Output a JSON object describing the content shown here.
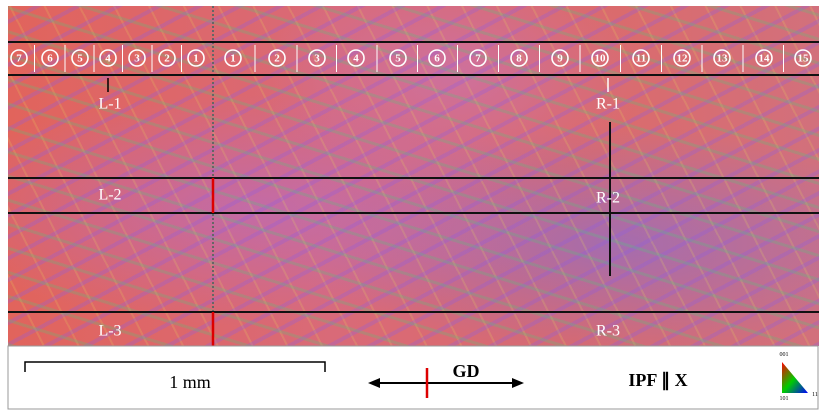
{
  "left_markers": [
    "7",
    "6",
    "5",
    "4",
    "3",
    "2",
    "1"
  ],
  "right_markers": [
    "1",
    "2",
    "3",
    "4",
    "5",
    "6",
    "7",
    "8",
    "9",
    "10",
    "11",
    "12",
    "13",
    "14",
    "15"
  ],
  "region_labels": [
    "L-1",
    "L-2",
    "L-3",
    "R-1",
    "R-2",
    "R-3"
  ],
  "scale_bar": "1 mm",
  "direction": "GD",
  "ipf": "IPF ∥ X",
  "legend": {
    "top": "001",
    "left": "101",
    "right": "11"
  }
}
